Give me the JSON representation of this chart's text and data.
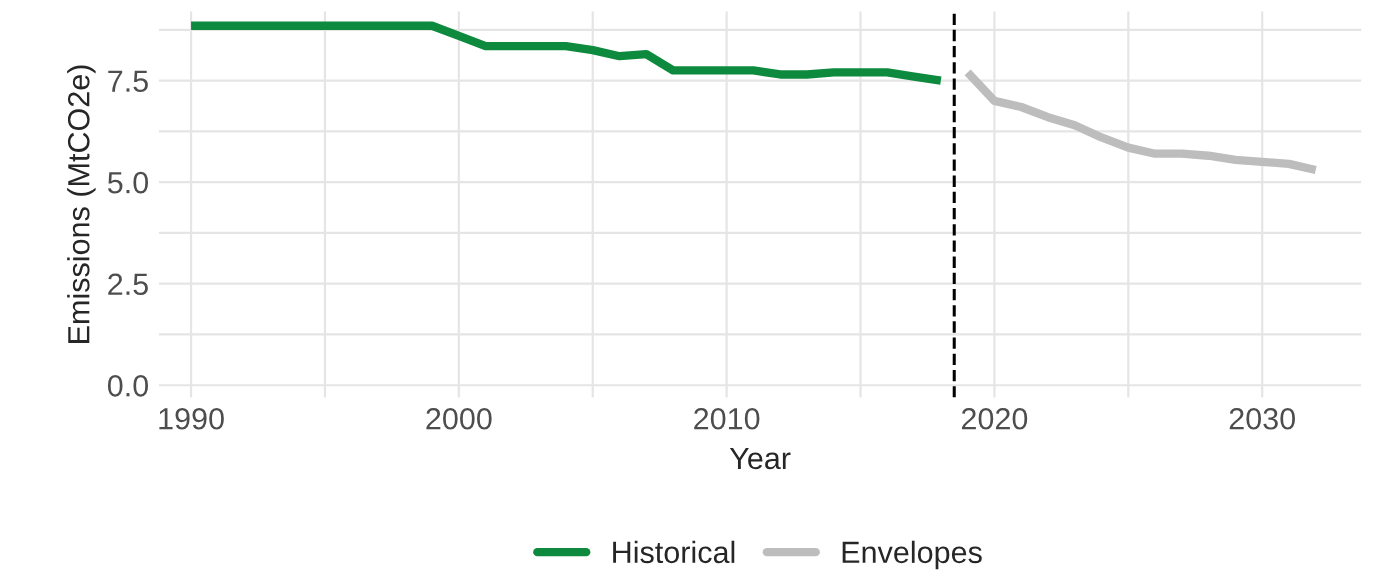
{
  "chart_data": {
    "type": "line",
    "xlabel": "Year",
    "ylabel": "Emissions (MtCO2e)",
    "series": [
      {
        "name": "Historical",
        "color": "#0e8a3e",
        "x": [
          1990,
          1999,
          2000,
          2001,
          2004,
          2005,
          2006,
          2007,
          2008,
          2011,
          2012,
          2013,
          2014,
          2016,
          2017,
          2018
        ],
        "values": [
          8.85,
          8.85,
          8.6,
          8.35,
          8.35,
          8.25,
          8.1,
          8.15,
          7.75,
          7.75,
          7.65,
          7.65,
          7.7,
          7.7,
          7.6,
          7.5
        ]
      },
      {
        "name": "Envelopes",
        "color": "#bdbdbd",
        "x": [
          2019,
          2020,
          2021,
          2022,
          2023,
          2024,
          2025,
          2026,
          2027,
          2028,
          2029,
          2030,
          2031,
          2032
        ],
        "values": [
          7.7,
          7.0,
          6.85,
          6.6,
          6.4,
          6.1,
          5.85,
          5.7,
          5.7,
          5.65,
          5.55,
          5.5,
          5.45,
          5.3
        ]
      }
    ],
    "xlim": [
      1988.8,
      2033.7
    ],
    "ylim": [
      -0.3,
      9.2
    ],
    "xticks": [
      {
        "value": 1990,
        "label": "1990"
      },
      {
        "value": 1995,
        "label": null
      },
      {
        "value": 2000,
        "label": "2000"
      },
      {
        "value": 2005,
        "label": null
      },
      {
        "value": 2010,
        "label": "2010"
      },
      {
        "value": 2015,
        "label": null
      },
      {
        "value": 2020,
        "label": "2020"
      },
      {
        "value": 2025,
        "label": null
      },
      {
        "value": 2030,
        "label": "2030"
      }
    ],
    "yticks": [
      {
        "value": 0,
        "label": "0.0"
      },
      {
        "value": 1.25,
        "label": null
      },
      {
        "value": 2.5,
        "label": "2.5"
      },
      {
        "value": 3.75,
        "label": null
      },
      {
        "value": 5,
        "label": "5.0"
      },
      {
        "value": 6.25,
        "label": null
      },
      {
        "value": 7.5,
        "label": "7.5"
      },
      {
        "value": 8.75,
        "label": null
      }
    ],
    "ref_lines": [
      {
        "axis": "x",
        "value": 2018.5,
        "color": "#000000",
        "line_style": "dashed"
      }
    ],
    "grid": true,
    "legend": "bottom",
    "line_style": "solid",
    "marker": "none"
  }
}
